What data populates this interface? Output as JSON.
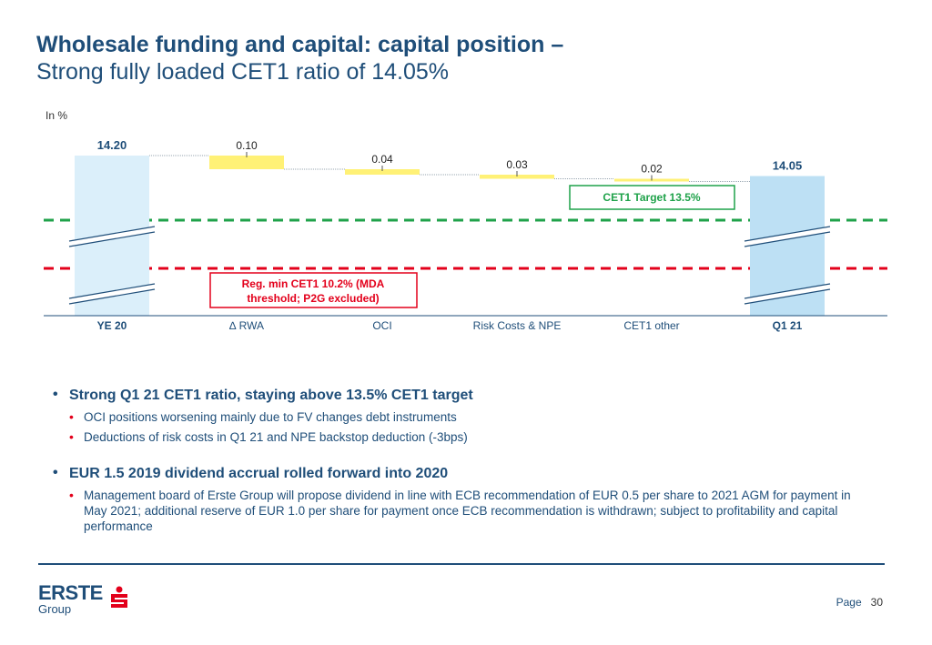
{
  "title": {
    "line1": "Wholesale funding and capital: capital position –",
    "line2": "Strong fully loaded CET1 ratio of 14.05%"
  },
  "chart_unit": "In %",
  "chart_data": {
    "type": "waterfall",
    "categories": [
      "YE 20",
      "∆ RWA",
      "OCI",
      "Risk Costs & NPE",
      "CET1 other",
      "Q1 21"
    ],
    "values": [
      14.2,
      -0.1,
      -0.04,
      -0.03,
      -0.02,
      14.05
    ],
    "labels": [
      "14.20",
      "0.10",
      "0.04",
      "0.03",
      "0.02",
      "14.05"
    ],
    "bar_kind": [
      "total",
      "delta",
      "delta",
      "delta",
      "delta",
      "total"
    ],
    "ylim_broken": true,
    "reference_lines": [
      {
        "name": "CET1 Target",
        "value": 13.5,
        "label": "CET1 Target 13.5%",
        "color": "#1fa24a"
      },
      {
        "name": "Reg. min CET1",
        "value": 10.2,
        "label": "Reg. min CET1 10.2% (MDA threshold; P2G excluded)",
        "color": "#e3001b"
      }
    ],
    "colors": {
      "total_first": "#dbeffa",
      "total_last": "#bde0f4",
      "delta": "#fff176",
      "axis": "#1f4e79"
    }
  },
  "bullets": [
    {
      "text": "Strong Q1 21 CET1 ratio, staying above 13.5% CET1 target",
      "sub": [
        "OCI positions worsening mainly due to FV changes debt instruments",
        "Deductions of risk costs in Q1 21 and NPE backstop deduction (-3bps)"
      ]
    },
    {
      "text": "EUR 1.5 2019 dividend accrual rolled forward into 2020",
      "sub": [
        "Management board of Erste Group will propose dividend in line with ECB recommendation of EUR 0.5 per share to 2021 AGM for payment in May 2021; additional reserve of EUR 1.0 per share for payment once ECB recommendation is withdrawn; subject to profitability and capital performance"
      ]
    }
  ],
  "footer": {
    "logo_text": "ERSTE",
    "logo_sub": "Group",
    "page_label": "Page",
    "page_number": "30"
  }
}
